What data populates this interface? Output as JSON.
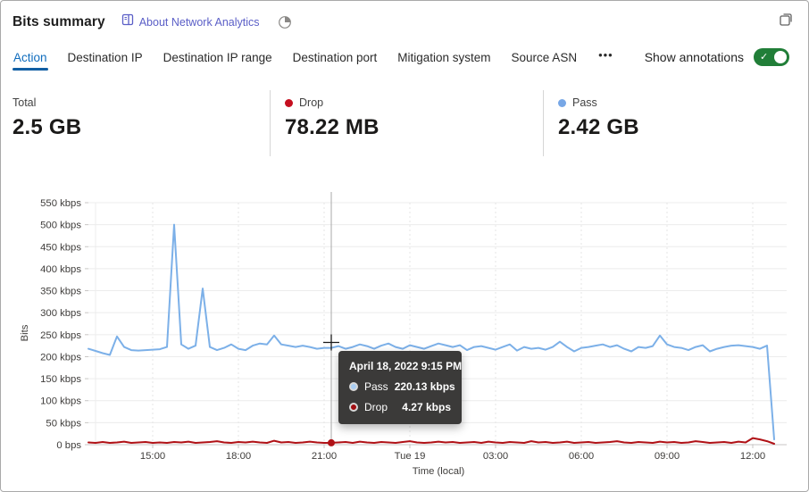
{
  "header": {
    "title": "Bits summary",
    "about_link": "About Network Analytics"
  },
  "tabs": {
    "items": [
      "Action",
      "Destination IP",
      "Destination IP range",
      "Destination port",
      "Mitigation system",
      "Source ASN"
    ],
    "active": "Action",
    "more_label": "•••",
    "show_annotations_label": "Show annotations",
    "annotations_on": true
  },
  "stats": [
    {
      "label": "Total",
      "value": "2.5 GB",
      "color": ""
    },
    {
      "label": "Drop",
      "value": "78.22 MB",
      "color": "#C50F1F"
    },
    {
      "label": "Pass",
      "value": "2.42 GB",
      "color": "#77A7E6"
    }
  ],
  "tooltip": {
    "title": "April 18, 2022 9:15 PM",
    "rows": [
      {
        "label": "Pass",
        "value": "220.13 kbps",
        "color": "#A9CDF3"
      },
      {
        "label": "Drop",
        "value": "4.27 kbps",
        "color": "#A00D11"
      }
    ]
  },
  "chart_data": {
    "type": "line",
    "ylabel": "Bits",
    "xlabel": "Time (local)",
    "y_unit": "kbps",
    "ylim_kbps": [
      0,
      550
    ],
    "y_tick_step_kbps": 50,
    "y_tick_labels": [
      "550 kbps",
      "500 kbps",
      "450 kbps",
      "400 kbps",
      "350 kbps",
      "300 kbps",
      "250 kbps",
      "200 kbps",
      "150 kbps",
      "100 kbps",
      "50 kbps",
      "0 bps"
    ],
    "x_start": "April 18, 2022 12:45 PM",
    "x_interval_minutes": 15,
    "x_ticks": [
      {
        "label": "15:00",
        "minutes": 135
      },
      {
        "label": "18:00",
        "minutes": 315
      },
      {
        "label": "21:00",
        "minutes": 495
      },
      {
        "label": "Tue 19",
        "minutes": 675
      },
      {
        "label": "03:00",
        "minutes": 855
      },
      {
        "label": "06:00",
        "minutes": 1035
      },
      {
        "label": "09:00",
        "minutes": 1215
      },
      {
        "label": "12:00",
        "minutes": 1395
      }
    ],
    "series": [
      {
        "name": "Pass",
        "color": "#7CB0E8",
        "values_kbps": [
          218,
          213,
          208,
          204,
          246,
          222,
          215,
          214,
          215,
          216,
          217,
          222,
          500,
          228,
          218,
          225,
          355,
          222,
          215,
          220,
          228,
          218,
          215,
          225,
          230,
          228,
          248,
          228,
          225,
          222,
          225,
          222,
          218,
          220,
          220,
          224,
          218,
          222,
          228,
          224,
          218,
          225,
          230,
          222,
          218,
          226,
          222,
          218,
          224,
          230,
          226,
          222,
          226,
          215,
          222,
          224,
          220,
          216,
          222,
          228,
          214,
          222,
          218,
          220,
          216,
          222,
          234,
          222,
          212,
          220,
          222,
          225,
          228,
          222,
          226,
          218,
          212,
          222,
          220,
          224,
          248,
          228,
          222,
          220,
          215,
          222,
          226,
          212,
          218,
          222,
          225,
          226,
          224,
          222,
          218,
          225,
          12
        ]
      },
      {
        "name": "Drop",
        "color": "#B01116",
        "values_kbps": [
          5,
          4,
          6,
          4,
          5,
          7,
          4,
          5,
          6,
          4,
          5,
          4,
          6,
          5,
          7,
          4,
          5,
          6,
          8,
          5,
          4,
          6,
          5,
          7,
          5,
          4,
          9,
          5,
          6,
          4,
          5,
          7,
          5,
          4,
          4.3,
          5,
          6,
          4,
          7,
          5,
          4,
          6,
          5,
          4,
          6,
          8,
          5,
          4,
          5,
          7,
          5,
          6,
          4,
          5,
          6,
          4,
          7,
          5,
          4,
          6,
          5,
          4,
          8,
          5,
          6,
          4,
          5,
          7,
          4,
          5,
          6,
          4,
          5,
          6,
          8,
          5,
          4,
          6,
          5,
          4,
          7,
          5,
          6,
          4,
          5,
          8,
          6,
          4,
          5,
          6,
          4,
          7,
          5,
          15,
          12,
          8,
          2
        ]
      }
    ],
    "hover": {
      "time": "April 18, 2022 9:15 PM",
      "minutes": 510,
      "pass_kbps": 220.13,
      "drop_kbps": 4.27
    }
  }
}
